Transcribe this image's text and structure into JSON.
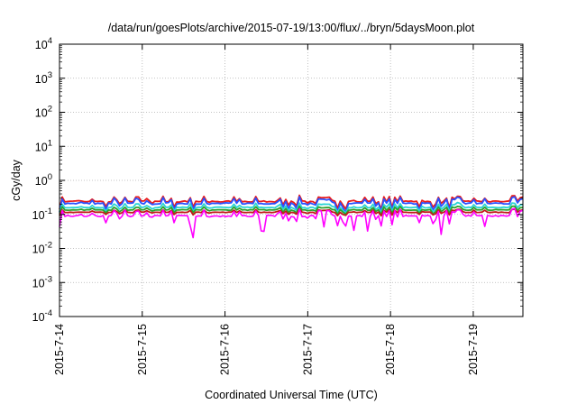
{
  "chart_data": {
    "type": "line",
    "title": "/data/run/goesPlots/archive/2015-07-19/13:00/flux/../bryn/5daysMoon.plot",
    "xlabel": "Coordinated Universal Time (UTC)",
    "ylabel": "cGy/day",
    "y_scale": "log",
    "ylim": [
      0.0001,
      10000
    ],
    "xlim_days": [
      0,
      5.6
    ],
    "grid": true,
    "y_ticks": [
      {
        "base": "10",
        "exp": "-4",
        "value": 0.0001
      },
      {
        "base": "10",
        "exp": "-3",
        "value": 0.001
      },
      {
        "base": "10",
        "exp": "-2",
        "value": 0.01
      },
      {
        "base": "10",
        "exp": "-1",
        "value": 0.1
      },
      {
        "base": "10",
        "exp": "0",
        "value": 1
      },
      {
        "base": "10",
        "exp": "1",
        "value": 10
      },
      {
        "base": "10",
        "exp": "2",
        "value": 100
      },
      {
        "base": "10",
        "exp": "3",
        "value": 1000
      },
      {
        "base": "10",
        "exp": "4",
        "value": 10000
      }
    ],
    "x_ticks": [
      {
        "label": "2015-7-14",
        "day": 0
      },
      {
        "label": "2015-7-15",
        "day": 1
      },
      {
        "label": "2015-7-16",
        "day": 2
      },
      {
        "label": "2015-7-17",
        "day": 3
      },
      {
        "label": "2015-7-18",
        "day": 4
      },
      {
        "label": "2015-7-19",
        "day": 5
      }
    ],
    "series": [
      {
        "color": "#e8191a",
        "level": 0.24,
        "jitter": 0.08
      },
      {
        "color": "#2952ff",
        "level": 0.21,
        "jitter": 0.09
      },
      {
        "color": "#2ad4d4",
        "level": 0.16,
        "jitter": 0.06
      },
      {
        "color": "#2ca02c",
        "level": 0.135,
        "jitter": 0.05
      },
      {
        "color": "#c01a1a",
        "level": 0.115,
        "jitter": 0.04
      },
      {
        "color": "#ff00ff",
        "level": 0.09,
        "jitter": 0.1,
        "dips": [
          2.45,
          2.48,
          3.72,
          3.55,
          4.6,
          5.15,
          3.2,
          1.6
        ]
      }
    ]
  }
}
